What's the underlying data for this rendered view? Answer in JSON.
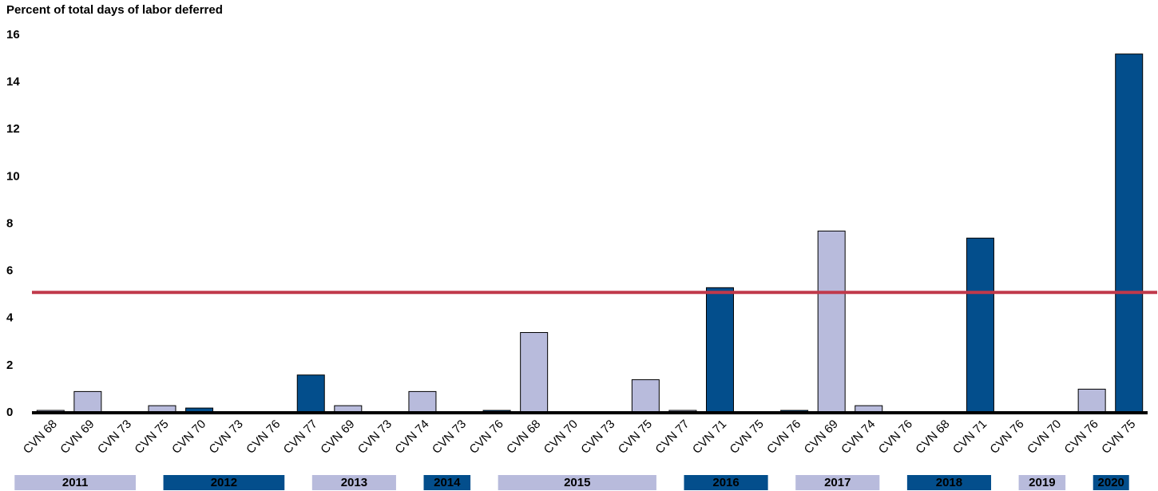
{
  "chart_data": {
    "type": "bar",
    "title": "Percent of total days of labor deferred",
    "ylim": [
      0,
      16
    ],
    "yticks": [
      0,
      2,
      4,
      6,
      8,
      10,
      12,
      14,
      16
    ],
    "grid": false,
    "reference_line": {
      "value": 5.1,
      "color": "#c0394b"
    },
    "groups": [
      {
        "name": "2011",
        "color": "#b8bbdc",
        "categories": [
          "CVN 68",
          "CVN 69",
          "CVN 73",
          "CVN 75"
        ],
        "values": [
          0.1,
          0.9,
          0.02,
          0.3
        ]
      },
      {
        "name": "2012",
        "color": "#034e8c",
        "categories": [
          "CVN 70",
          "CVN 73",
          "CVN 76",
          "CVN 77"
        ],
        "values": [
          0.2,
          0,
          0,
          1.6
        ]
      },
      {
        "name": "2013",
        "color": "#b8bbdc",
        "categories": [
          "CVN 69",
          "CVN 73",
          "CVN 74"
        ],
        "values": [
          0.3,
          0,
          0.9
        ]
      },
      {
        "name": "2014",
        "color": "#034e8c",
        "categories": [
          "CVN 73",
          "CVN 76"
        ],
        "values": [
          0,
          0.1
        ]
      },
      {
        "name": "2015",
        "color": "#b8bbdc",
        "categories": [
          "CVN 68",
          "CVN 70",
          "CVN 73",
          "CVN 75",
          "CVN 77"
        ],
        "values": [
          3.4,
          0.02,
          0.02,
          1.4,
          0.1
        ]
      },
      {
        "name": "2016",
        "color": "#034e8c",
        "categories": [
          "CVN 71",
          "CVN 75",
          "CVN 76"
        ],
        "values": [
          5.3,
          0.02,
          0.1
        ]
      },
      {
        "name": "2017",
        "color": "#b8bbdc",
        "categories": [
          "CVN 69",
          "CVN 74",
          "CVN 76"
        ],
        "values": [
          7.7,
          0.3,
          0
        ]
      },
      {
        "name": "2018",
        "color": "#034e8c",
        "categories": [
          "CVN 68",
          "CVN 71",
          "CVN 76"
        ],
        "values": [
          0.02,
          7.4,
          0
        ]
      },
      {
        "name": "2019",
        "color": "#b8bbdc",
        "categories": [
          "CVN 70",
          "CVN 76"
        ],
        "values": [
          0,
          1.0
        ]
      },
      {
        "name": "2020",
        "color": "#034e8c",
        "categories": [
          "CVN 75"
        ],
        "values": [
          15.2
        ]
      }
    ]
  }
}
